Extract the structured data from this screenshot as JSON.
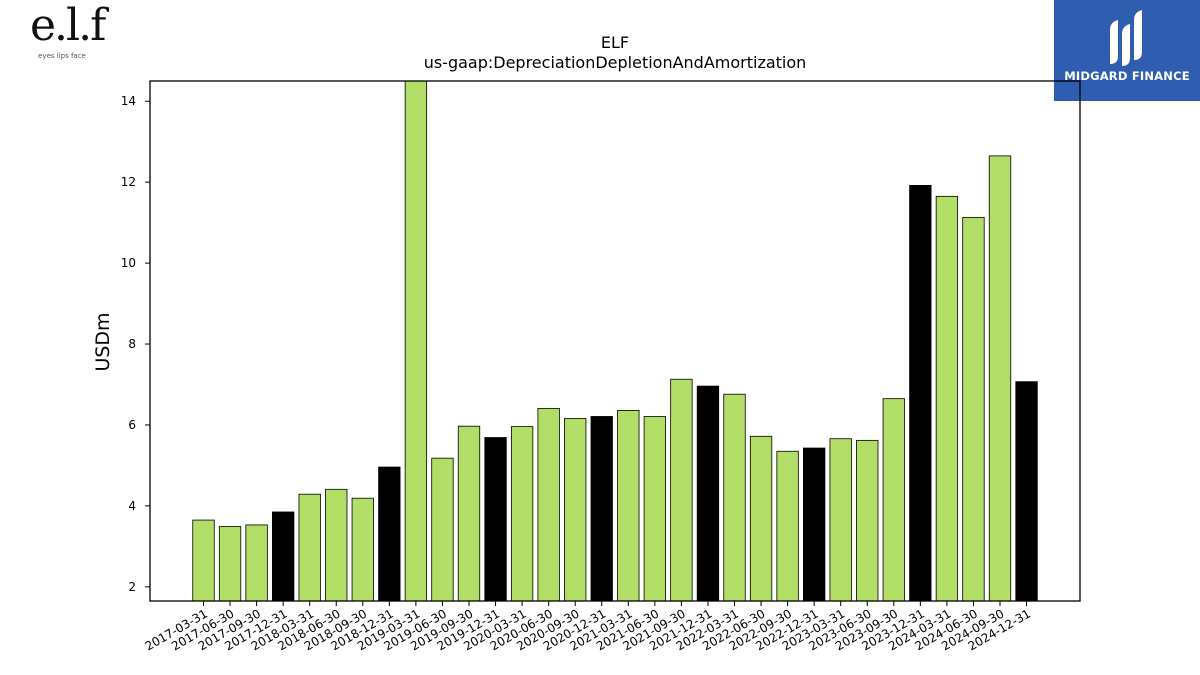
{
  "logos": {
    "left": {
      "mark": "e.l.f",
      "tagline": "eyes lips face"
    },
    "right": {
      "brand": "MIDGARD FINANCE"
    }
  },
  "colors": {
    "regular": "#b2dd67",
    "year_end": "#000000"
  },
  "chart_data": {
    "type": "bar",
    "title": "ELF",
    "subtitle": "us-gaap:DepreciationDepletionAndAmortization",
    "xlabel": "",
    "ylabel": "USDm",
    "ylim": [
      1.65,
      14.5
    ],
    "yticks": [
      2,
      4,
      6,
      8,
      10,
      12,
      14
    ],
    "grid": false,
    "categories": [
      "2017-03-31",
      "2017-06-30",
      "2017-09-30",
      "2017-12-31",
      "2018-03-31",
      "2018-06-30",
      "2018-09-30",
      "2018-12-31",
      "2019-03-31",
      "2019-06-30",
      "2019-09-30",
      "2019-12-31",
      "2020-03-31",
      "2020-06-30",
      "2020-09-30",
      "2020-12-31",
      "2021-03-31",
      "2021-06-30",
      "2021-09-30",
      "2021-12-31",
      "2022-03-31",
      "2022-06-30",
      "2022-09-30",
      "2022-12-31",
      "2023-03-31",
      "2023-06-30",
      "2023-09-30",
      "2023-12-31",
      "2024-03-31",
      "2024-06-30",
      "2024-09-30",
      "2024-12-31"
    ],
    "values": [
      3.65,
      3.49,
      3.53,
      3.85,
      4.29,
      4.41,
      4.19,
      4.96,
      14.5,
      5.18,
      5.97,
      5.69,
      5.96,
      6.41,
      6.16,
      6.21,
      6.36,
      6.21,
      7.13,
      6.96,
      6.76,
      5.72,
      5.35,
      5.43,
      5.66,
      5.62,
      6.65,
      11.92,
      11.65,
      11.13,
      12.65,
      7.07
    ],
    "year_end": [
      false,
      false,
      false,
      true,
      false,
      false,
      false,
      true,
      false,
      false,
      false,
      true,
      false,
      false,
      false,
      true,
      false,
      false,
      false,
      true,
      false,
      false,
      false,
      true,
      false,
      false,
      false,
      true,
      false,
      false,
      false,
      true
    ]
  }
}
